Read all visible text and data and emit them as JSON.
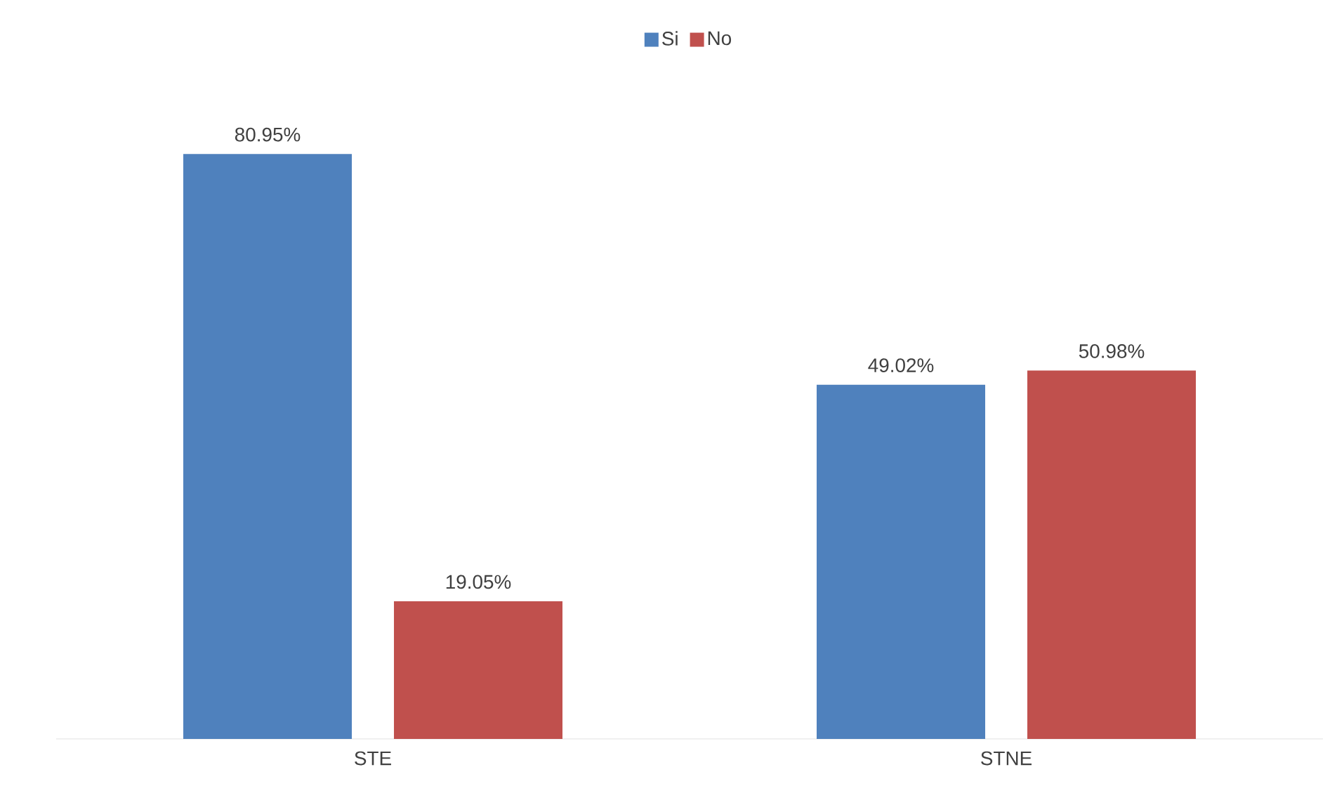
{
  "chart_data": {
    "type": "bar",
    "categories": [
      "STE",
      "STNE"
    ],
    "series": [
      {
        "name": "Si",
        "color": "#4f81bd",
        "values": [
          80.95,
          49.02
        ],
        "value_labels": [
          "80.95%",
          "49.02%"
        ]
      },
      {
        "name": "No",
        "color": "#c0504d",
        "values": [
          19.05,
          50.98
        ],
        "value_labels": [
          "19.05%",
          "50.98%"
        ]
      }
    ],
    "legend": "top"
  }
}
